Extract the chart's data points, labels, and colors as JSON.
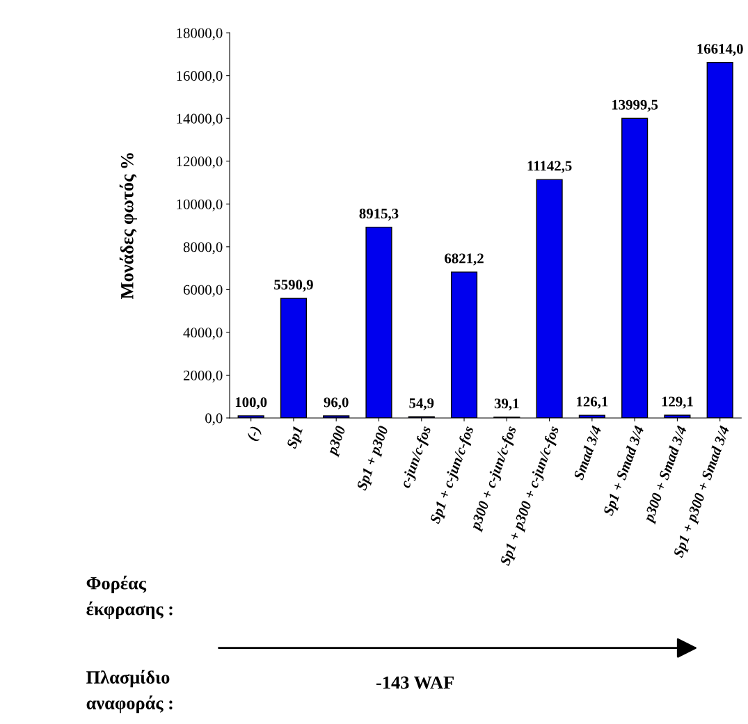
{
  "chart_data": {
    "type": "bar",
    "ylabel": "Μονάδες φωτός %",
    "categories": [
      "(-)",
      "Sp1",
      "p300",
      "Sp1 + p300",
      "c-jun/c-fos",
      "Sp1 + c-jun/c-fos",
      "p300 + c-jun/c-fos",
      "Sp1 + p300 + c-jun/c-fos",
      "Smad 3/4",
      "Sp1 + Smad 3/4",
      "p300 + Smad 3/4",
      "Sp1 + p300 + Smad 3/4"
    ],
    "values": [
      100.0,
      5590.9,
      96.0,
      8915.3,
      54.9,
      6821.2,
      39.1,
      11142.5,
      126.1,
      13999.5,
      129.1,
      16614.0
    ],
    "value_labels": [
      "100,0",
      "5590,9",
      "96,0",
      "8915,3",
      "54,9",
      "6821,2",
      "39,1",
      "11142,5",
      "126,1",
      "13999,5",
      "129,1",
      "16614,0"
    ],
    "color": "#0000ee",
    "ylim": [
      0,
      18000
    ],
    "yticks": [
      {
        "value": 0,
        "label": "0,0"
      },
      {
        "value": 2000,
        "label": "2000,0"
      },
      {
        "value": 4000,
        "label": "4000,0"
      },
      {
        "value": 6000,
        "label": "6000,0"
      },
      {
        "value": 8000,
        "label": "8000,0"
      },
      {
        "value": 10000,
        "label": "10000,0"
      },
      {
        "value": 12000,
        "label": "12000,0"
      },
      {
        "value": 14000,
        "label": "14000,0"
      },
      {
        "value": 16000,
        "label": "16000,0"
      },
      {
        "value": 18000,
        "label": "18000,0"
      }
    ],
    "grid": false,
    "legend": false,
    "annotations": [
      "Φορέας\nέκφρασης :",
      "Πλασμίδιο\nαναφοράς :",
      "-143 WAF"
    ]
  }
}
